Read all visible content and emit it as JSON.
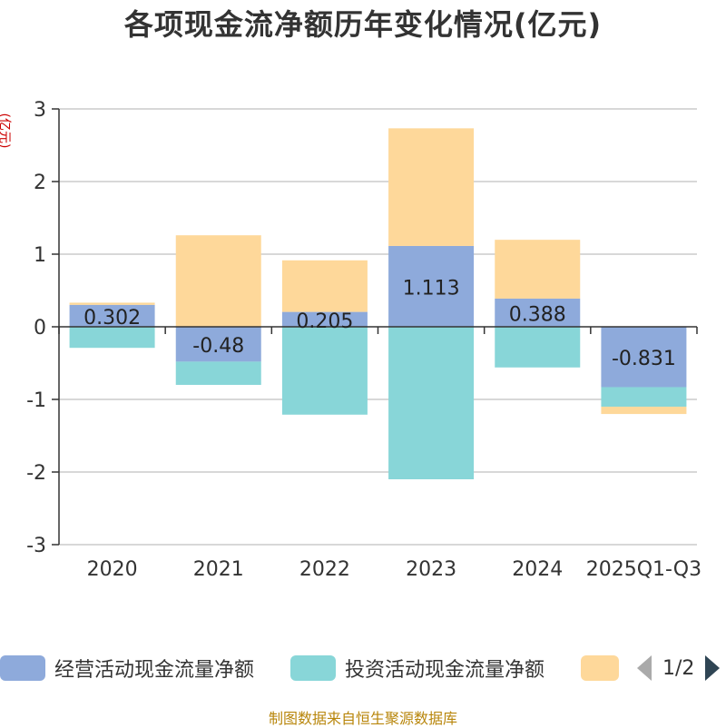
{
  "chart_data": {
    "type": "bar",
    "stacked": true,
    "title": "各项现金流净额历年变化情况(亿元)",
    "ylabel": "(亿元)",
    "xlabel": "",
    "categories": [
      "2020",
      "2021",
      "2022",
      "2023",
      "2024",
      "2025Q1-Q3"
    ],
    "ylim": [
      -3,
      3
    ],
    "yticks": [
      -3,
      -2,
      -1,
      0,
      1,
      2,
      3
    ],
    "grid": true,
    "legend_position": "bottom",
    "series": [
      {
        "name": "经营活动现金流量净额",
        "color": "#8eaadb",
        "values": [
          0.302,
          -0.48,
          0.205,
          1.113,
          0.388,
          -0.831
        ],
        "labels": [
          "0.302",
          "-0.48",
          "0.205",
          "1.113",
          "0.388",
          "-0.831"
        ]
      },
      {
        "name": "投资活动现金流量净额",
        "color": "#88d6d8",
        "values": [
          -0.29,
          -0.32,
          -1.21,
          -2.1,
          -0.56,
          -0.27
        ]
      },
      {
        "name": "",
        "color": "#fed89a",
        "values": [
          0.03,
          1.26,
          0.71,
          1.62,
          0.81,
          -0.1
        ]
      }
    ]
  },
  "legend": {
    "items": [
      {
        "label": "经营活动现金流量净额",
        "color": "#8eaadb"
      },
      {
        "label": "投资活动现金流量净额",
        "color": "#88d6d8"
      },
      {
        "label": "",
        "color": "#fed89a"
      }
    ],
    "pager": {
      "text": "1/2",
      "prev_icon": "triangle-left-icon",
      "next_icon": "triangle-right-icon"
    }
  },
  "source": "制图数据来自恒生聚源数据库"
}
